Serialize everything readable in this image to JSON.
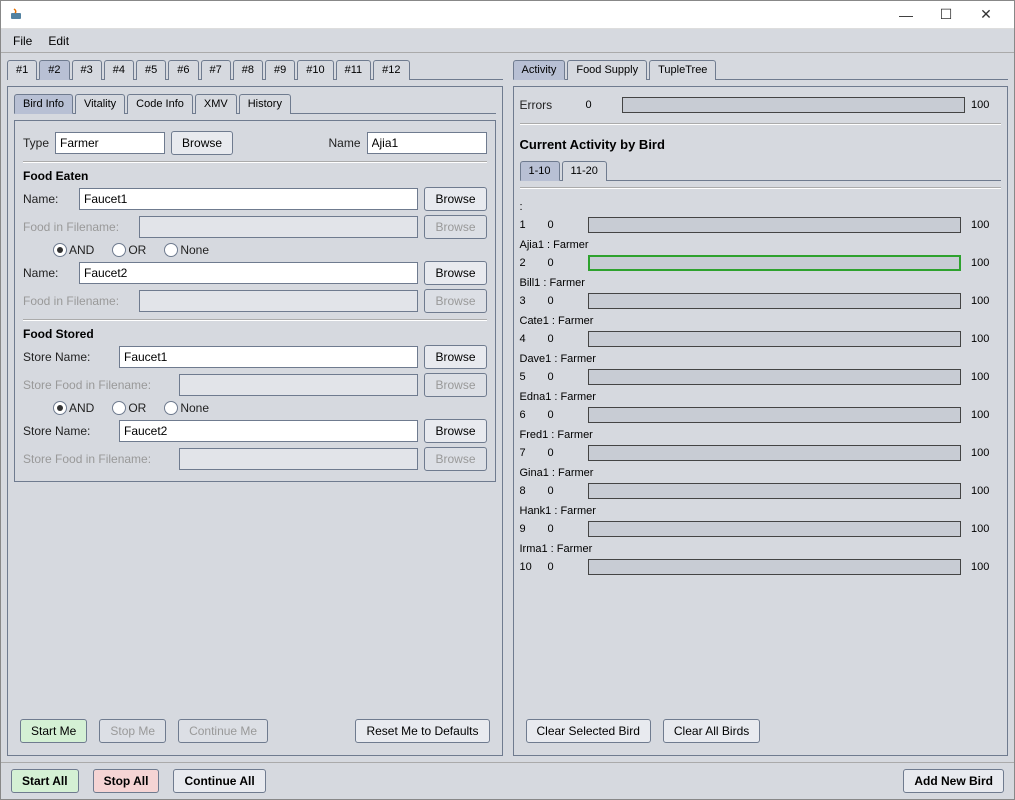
{
  "window": {
    "title": ""
  },
  "menu": {
    "file": "File",
    "edit": "Edit"
  },
  "window_controls": {
    "minimize": "—",
    "maximize": "☐",
    "close": "✕"
  },
  "top_tabs": [
    "#1",
    "#2",
    "#3",
    "#4",
    "#5",
    "#6",
    "#7",
    "#8",
    "#9",
    "#10",
    "#11",
    "#12"
  ],
  "top_tabs_active_index": 1,
  "sub_tabs": [
    "Bird Info",
    "Vitality",
    "Code Info",
    "XMV",
    "History"
  ],
  "sub_tabs_active_index": 0,
  "form": {
    "type_label": "Type",
    "type_value": "Farmer",
    "browse": "Browse",
    "name_label": "Name",
    "name_value": "Ajia1",
    "food_eaten_title": "Food Eaten",
    "name1_label": "Name:",
    "name1_value": "Faucet1",
    "file1_label": "Food in Filename:",
    "file1_value": "",
    "logic_and": "AND",
    "logic_or": "OR",
    "logic_none": "None",
    "name2_label": "Name:",
    "name2_value": "Faucet2",
    "file2_label": "Food in Filename:",
    "file2_value": "",
    "food_stored_title": "Food Stored",
    "store1_label": "Store Name:",
    "store1_value": "Faucet1",
    "storefile1_label": "Store Food in Filename:",
    "store2_label": "Store Name:",
    "store2_value": "Faucet2",
    "storefile2_label": "Store Food in Filename:"
  },
  "btns": {
    "start_me": "Start Me",
    "stop_me": "Stop Me",
    "continue_me": "Continue Me",
    "reset_me": "Reset Me to Defaults",
    "start_all": "Start All",
    "stop_all": "Stop All",
    "continue_all": "Continue All",
    "add_new": "Add New Bird",
    "clear_selected": "Clear Selected Bird",
    "clear_all": "Clear All Birds"
  },
  "right_tabs": [
    "Activity",
    "Food Supply",
    "TupleTree"
  ],
  "right_tabs_active_index": 0,
  "errors_label": "Errors",
  "errors_val": "0",
  "errors_max": "100",
  "activity_title": "Current Activity by Bird",
  "range_tabs": [
    "1-10",
    "11-20"
  ],
  "range_tabs_active_index": 0,
  "activity": [
    {
      "n": "1",
      "label": ":",
      "val": "0",
      "max": "100",
      "highlight": false
    },
    {
      "n": "2",
      "label": "Ajia1 : Farmer",
      "val": "0",
      "max": "100",
      "highlight": true
    },
    {
      "n": "3",
      "label": "Bill1 : Farmer",
      "val": "0",
      "max": "100",
      "highlight": false
    },
    {
      "n": "4",
      "label": "Cate1 : Farmer",
      "val": "0",
      "max": "100",
      "highlight": false
    },
    {
      "n": "5",
      "label": "Dave1 : Farmer",
      "val": "0",
      "max": "100",
      "highlight": false
    },
    {
      "n": "6",
      "label": "Edna1 : Farmer",
      "val": "0",
      "max": "100",
      "highlight": false
    },
    {
      "n": "7",
      "label": "Fred1 : Farmer",
      "val": "0",
      "max": "100",
      "highlight": false
    },
    {
      "n": "8",
      "label": "Gina1 : Farmer",
      "val": "0",
      "max": "100",
      "highlight": false
    },
    {
      "n": "9",
      "label": "Hank1 : Farmer",
      "val": "0",
      "max": "100",
      "highlight": false
    },
    {
      "n": "10",
      "label": "Irma1 : Farmer",
      "val": "0",
      "max": "100",
      "highlight": false
    }
  ],
  "colors": {
    "bg": "#d6d9df",
    "border": "#6f7b8f",
    "highlight": "#2ea22e"
  }
}
